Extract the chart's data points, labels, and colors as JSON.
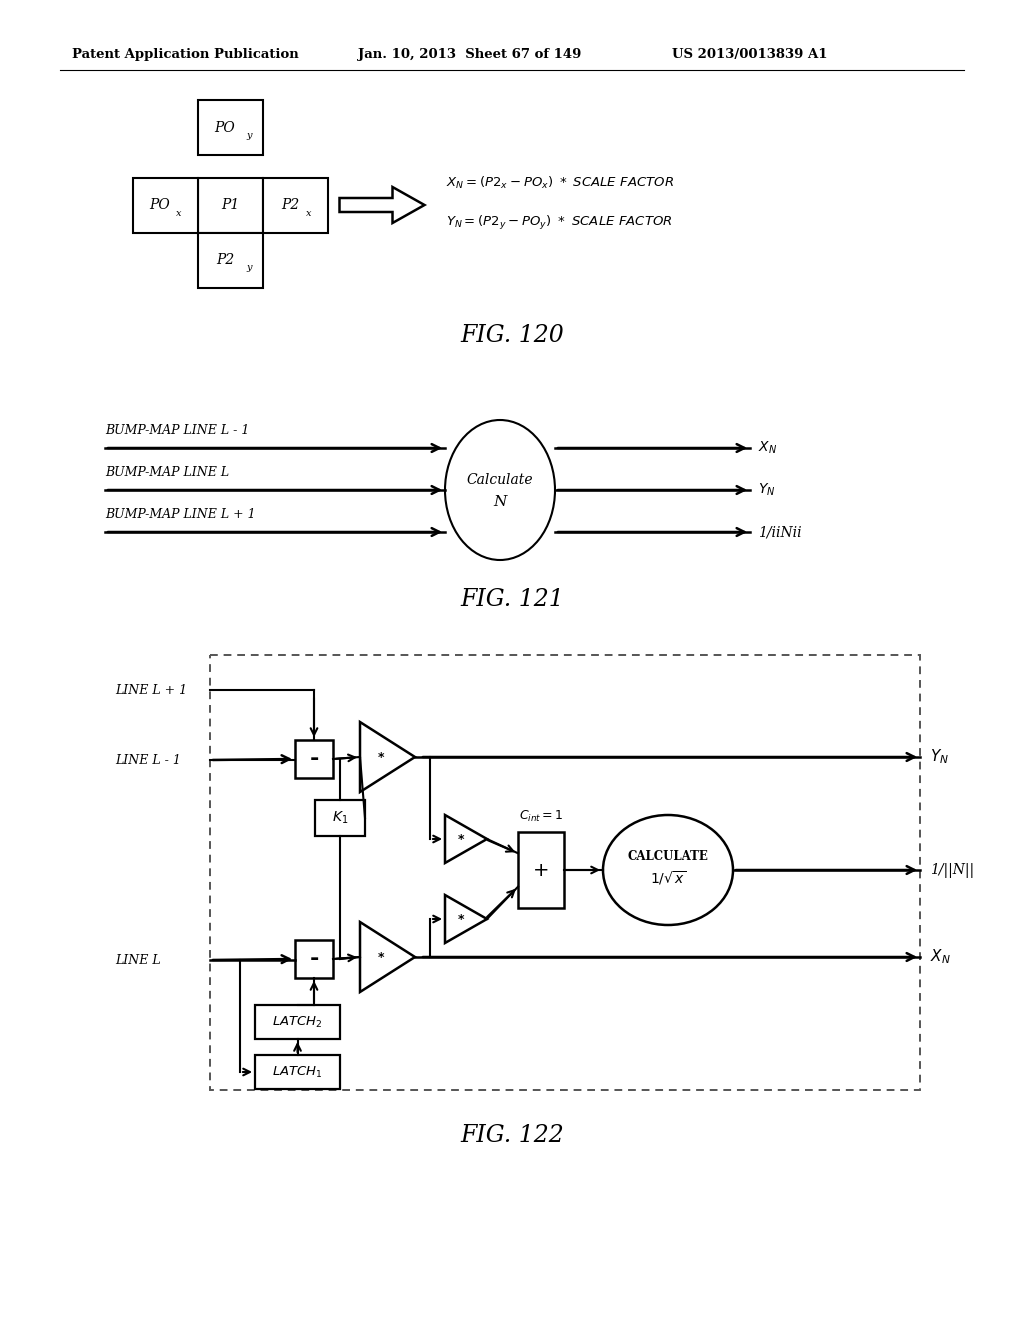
{
  "bg_color": "#ffffff",
  "header_text": "Patent Application Publication",
  "header_date": "Jan. 10, 2013  Sheet 67 of 149",
  "header_patent": "US 2013/0013839 A1",
  "fig120_caption": "FIG. 120",
  "fig121_caption": "FIG. 121",
  "fig122_caption": "FIG. 122"
}
